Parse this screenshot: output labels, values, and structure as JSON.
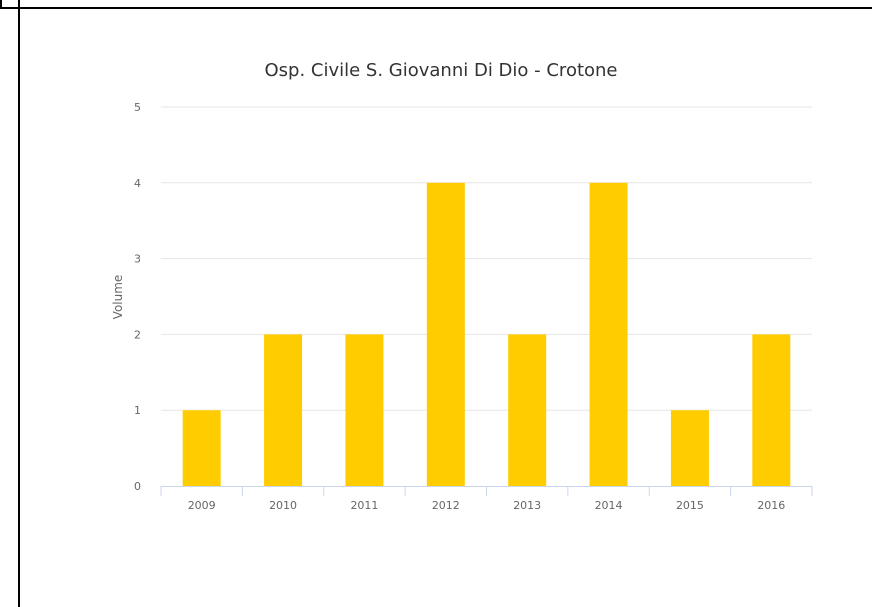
{
  "chart_data": {
    "type": "bar",
    "title": "Osp. Civile S. Giovanni Di Dio - Crotone",
    "xlabel": "",
    "ylabel": "Volume",
    "categories": [
      "2009",
      "2010",
      "2011",
      "2012",
      "2013",
      "2014",
      "2015",
      "2016"
    ],
    "values": [
      1,
      2,
      2,
      4,
      2,
      4,
      1,
      2
    ],
    "ylim": [
      0,
      5
    ],
    "yticks": [
      0,
      1,
      2,
      3,
      4,
      5
    ],
    "grid": true,
    "legend": "none",
    "bar_color": "#FFCC00"
  }
}
